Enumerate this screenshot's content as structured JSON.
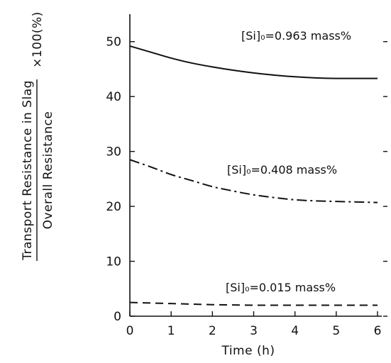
{
  "chart_data": {
    "type": "line",
    "xlabel": "Time (h)",
    "ylabel_numerator": "Transport Resistance in Slag",
    "ylabel_denominator": "Overall Resistance",
    "ylabel_multiplier": "×100(%)",
    "xlim": [
      0,
      6
    ],
    "ylim": [
      0,
      55
    ],
    "x_ticks": [
      "0",
      "1",
      "2",
      "3",
      "4",
      "5",
      "6"
    ],
    "y_ticks": [
      "0",
      "10",
      "20",
      "30",
      "40",
      "50"
    ],
    "grid": false,
    "series": [
      {
        "name": "[Si]₀=0.963 mass%",
        "line_style": "solid",
        "x": [
          0,
          0.5,
          1,
          1.5,
          2,
          2.5,
          3,
          3.5,
          4,
          4.5,
          5,
          5.5,
          6
        ],
        "y": [
          49.2,
          48.1,
          47.0,
          46.1,
          45.4,
          44.8,
          44.3,
          43.9,
          43.6,
          43.4,
          43.3,
          43.3,
          43.3
        ]
      },
      {
        "name": "[Si]₀=0.408 mass%",
        "line_style": "dash-dot",
        "x": [
          0,
          0.5,
          1,
          1.5,
          2,
          2.5,
          3,
          3.5,
          4,
          4.5,
          5,
          5.5,
          6
        ],
        "y": [
          28.5,
          27.2,
          25.8,
          24.7,
          23.6,
          22.8,
          22.1,
          21.6,
          21.2,
          21.0,
          20.9,
          20.8,
          20.7
        ]
      },
      {
        "name": "[Si]₀=0.015 mass%",
        "line_style": "dashed",
        "x": [
          0,
          0.5,
          1,
          1.5,
          2,
          2.5,
          3,
          3.5,
          4,
          4.5,
          5,
          5.5,
          6
        ],
        "y": [
          2.5,
          2.4,
          2.3,
          2.2,
          2.1,
          2.05,
          2.0,
          2.0,
          2.0,
          2.0,
          2.0,
          2.0,
          2.0
        ]
      }
    ]
  }
}
